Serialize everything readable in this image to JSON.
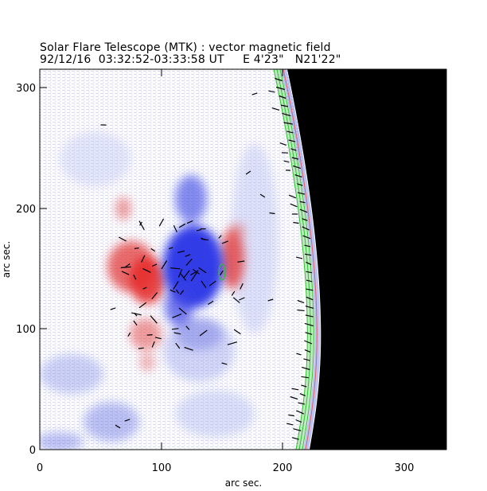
{
  "figure": {
    "title": "Solar Flare Telescope (MTK) : vector magnetic field",
    "subtitle": "92/12/16  03:32:52-03:33:58 UT     E 4'23\"   N21'22\"",
    "xlabel": "arc sec.",
    "ylabel": "arc sec.",
    "x_ticks": [
      "0",
      "100",
      "200",
      "300"
    ],
    "y_ticks": [
      "0",
      "100",
      "200",
      "300"
    ],
    "xlim": [
      0,
      335
    ],
    "ylim": [
      0,
      315
    ]
  },
  "colors": {
    "positive_polarity": "#e23b3b",
    "negative_polarity": "#3a46e6",
    "background_noise": "#9aa2e8",
    "off_limb": "#000000",
    "limb_contours": "#2fbf2f",
    "vectors": "#000000"
  }
}
